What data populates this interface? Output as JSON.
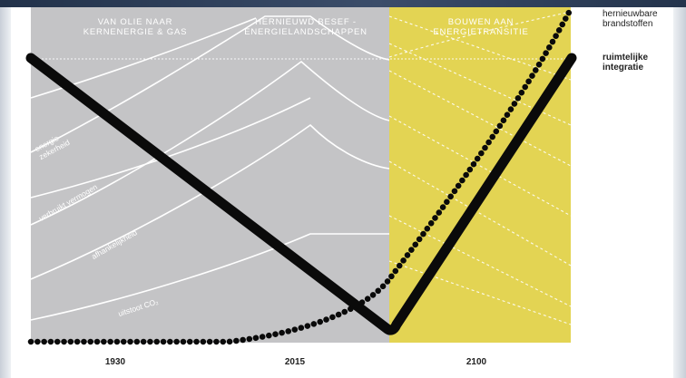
{
  "phases": [
    {
      "line1": "VAN OLIE NAAR",
      "line2": "KERNENERGIE & GAS"
    },
    {
      "line1": "HERNIEUWD BESEF -",
      "line2": "ENERGIELANDSCHAPPEN"
    },
    {
      "line1": "BOUWEN AAN",
      "line2": "ENERGIETRANSITIE"
    }
  ],
  "timeline": [
    "1930",
    "2015",
    "2100"
  ],
  "curve_labels": {
    "energy_security": [
      "energie",
      "zekerheid"
    ],
    "purchasing_power": "verbruikt vermogen",
    "dependency": "afhankelijkheid",
    "emissions": "uitstoot CO₂"
  },
  "legend": {
    "renewable": [
      "hernieuwbare",
      "brandstoffen"
    ],
    "spatial": [
      "ruimtelijke",
      "integratie"
    ]
  },
  "colors": {
    "grey_panel": "#c4c4c6",
    "yellow_panel": "#e3d453",
    "line_white": "#ffffff",
    "curve_black": "#0a0a0a"
  }
}
